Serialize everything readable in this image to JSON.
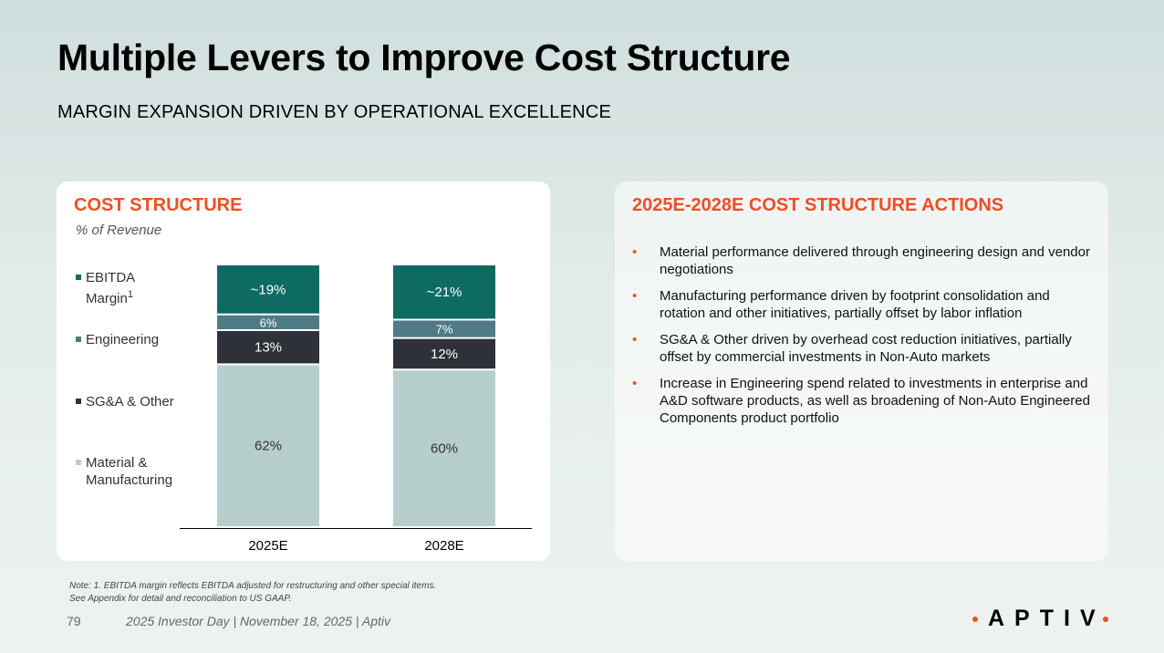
{
  "header": {
    "title": "Multiple Levers to Improve Cost Structure",
    "subtitle": "MARGIN EXPANSION DRIVEN BY OPERATIONAL EXCELLENCE"
  },
  "left_card": {
    "heading": "COST STRUCTURE",
    "unit": "% of Revenue"
  },
  "legend": [
    {
      "label_lines": [
        "EBITDA",
        "Margin"
      ],
      "sup": "1"
    },
    {
      "label_lines": [
        "Engineering"
      ],
      "sup": ""
    },
    {
      "label_lines": [
        "SG&A & Other"
      ],
      "sup": ""
    },
    {
      "label_lines": [
        "Material &",
        "Manufacturing"
      ],
      "sup": ""
    }
  ],
  "colors": {
    "ebitda": "#0e6b61",
    "engineering": "#4e7b86",
    "sga": "#2f3138",
    "material": "#b6cfcc",
    "accent": "#f04e23"
  },
  "chart_data": {
    "type": "bar",
    "stacked": true,
    "categories": [
      "2025E",
      "2028E"
    ],
    "series": [
      {
        "name": "Material & Manufacturing",
        "values": [
          62,
          60
        ],
        "labels": [
          "62%",
          "60%"
        ]
      },
      {
        "name": "SG&A & Other",
        "values": [
          13,
          12
        ],
        "labels": [
          "13%",
          "12%"
        ]
      },
      {
        "name": "Engineering",
        "values": [
          6,
          7
        ],
        "labels": [
          "6%",
          "7%"
        ]
      },
      {
        "name": "EBITDA Margin",
        "values": [
          19,
          21
        ],
        "labels": [
          "~19%",
          "~21%"
        ]
      }
    ],
    "title": "COST STRUCTURE",
    "ylabel": "% of Revenue",
    "ylim": [
      0,
      100
    ],
    "grid": false,
    "legend_position": "left"
  },
  "right_card": {
    "heading": "2025E-2028E COST STRUCTURE ACTIONS",
    "bullets": [
      "Material performance delivered through engineering design and vendor negotiations",
      "Manufacturing performance driven by footprint consolidation and rotation and other initiatives, partially offset by labor inflation",
      "SG&A & Other driven by overhead cost reduction initiatives, partially offset by commercial investments in Non-Auto markets",
      "Increase in Engineering spend related to investments in enterprise and A&D software products, as well as broadening of Non-Auto Engineered Components product portfolio"
    ]
  },
  "footer": {
    "note_line1": "Note: 1. EBITDA margin reflects EBITDA adjusted for restructuring and other special items.",
    "note_line2": "See Appendix for detail and reconciliation to US GAAP.",
    "page_number": "79",
    "text": "2025 Investor Day | November 18, 2025 | Aptiv",
    "logo": "APTIV"
  }
}
